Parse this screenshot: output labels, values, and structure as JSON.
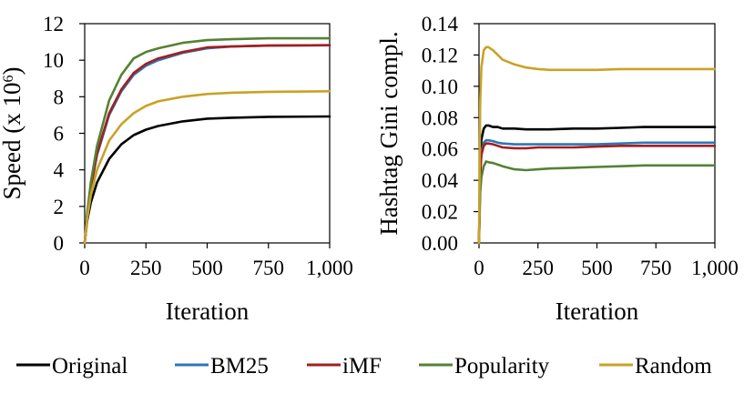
{
  "legend": [
    {
      "name": "Original",
      "color": "#000000"
    },
    {
      "name": "BM25",
      "color": "#2e75b6"
    },
    {
      "name": "iMF",
      "color": "#a31f1f"
    },
    {
      "name": "Popularity",
      "color": "#548235"
    },
    {
      "name": "Random",
      "color": "#c9a227"
    }
  ],
  "chart_data": [
    {
      "type": "line",
      "title": "",
      "xlabel": "Iteration",
      "ylabel": "Speed (x 10",
      "ylabel_superscript": "6",
      "ylabel_suffix": ")",
      "xlim": [
        0,
        1000
      ],
      "ylim": [
        0,
        12
      ],
      "xticks": [
        0,
        250,
        500,
        750,
        1000
      ],
      "xtick_labels": [
        "0",
        "250",
        "500",
        "750",
        "1,000"
      ],
      "yticks": [
        0,
        2,
        4,
        6,
        8,
        10,
        12
      ],
      "ytick_labels": [
        "0",
        "2",
        "4",
        "6",
        "8",
        "10",
        "12"
      ],
      "grid": false,
      "x": [
        0,
        10,
        25,
        50,
        100,
        150,
        200,
        250,
        300,
        400,
        500,
        600,
        750,
        1000
      ],
      "series": [
        {
          "name": "Original",
          "color": "#000000",
          "values": [
            0,
            1.2,
            2.2,
            3.3,
            4.6,
            5.4,
            5.9,
            6.2,
            6.4,
            6.65,
            6.8,
            6.85,
            6.9,
            6.92
          ]
        },
        {
          "name": "BM25",
          "color": "#2e75b6",
          "values": [
            0,
            1.5,
            3.0,
            4.8,
            7.0,
            8.3,
            9.2,
            9.7,
            10.0,
            10.4,
            10.65,
            10.75,
            10.8,
            10.82
          ]
        },
        {
          "name": "iMF",
          "color": "#a31f1f",
          "values": [
            0,
            1.5,
            3.0,
            4.9,
            7.1,
            8.4,
            9.3,
            9.8,
            10.1,
            10.45,
            10.7,
            10.75,
            10.8,
            10.82
          ]
        },
        {
          "name": "Popularity",
          "color": "#548235",
          "values": [
            0,
            1.6,
            3.3,
            5.3,
            7.8,
            9.2,
            10.1,
            10.45,
            10.65,
            10.95,
            11.1,
            11.15,
            11.2,
            11.2
          ]
        },
        {
          "name": "Random",
          "color": "#c9a227",
          "values": [
            0,
            1.3,
            2.6,
            4.0,
            5.6,
            6.5,
            7.1,
            7.5,
            7.75,
            8.0,
            8.15,
            8.22,
            8.27,
            8.3
          ]
        }
      ]
    },
    {
      "type": "line",
      "title": "",
      "xlabel": "Iteration",
      "ylabel": "Hashtag Gini compl.",
      "xlim": [
        0,
        1000
      ],
      "ylim": [
        0,
        0.14
      ],
      "xticks": [
        0,
        250,
        500,
        750,
        1000
      ],
      "xtick_labels": [
        "0",
        "250",
        "500",
        "750",
        "1,000"
      ],
      "yticks": [
        0,
        0.02,
        0.04,
        0.06,
        0.08,
        0.1,
        0.12,
        0.14
      ],
      "ytick_labels": [
        "0.00",
        "0.02",
        "0.04",
        "0.06",
        "0.08",
        "0.10",
        "0.12",
        "0.14"
      ],
      "grid": false,
      "x": [
        0,
        5,
        10,
        20,
        30,
        40,
        60,
        80,
        100,
        150,
        200,
        250,
        300,
        400,
        500,
        600,
        700,
        800,
        1000
      ],
      "series": [
        {
          "name": "Original",
          "color": "#000000",
          "values": [
            0,
            0.05,
            0.066,
            0.073,
            0.075,
            0.075,
            0.074,
            0.074,
            0.073,
            0.073,
            0.0725,
            0.0725,
            0.0725,
            0.073,
            0.073,
            0.0735,
            0.074,
            0.074,
            0.074
          ]
        },
        {
          "name": "BM25",
          "color": "#2e75b6",
          "values": [
            0,
            0.045,
            0.058,
            0.064,
            0.0655,
            0.0655,
            0.065,
            0.064,
            0.0635,
            0.063,
            0.063,
            0.063,
            0.063,
            0.063,
            0.063,
            0.0635,
            0.064,
            0.064,
            0.064
          ]
        },
        {
          "name": "iMF",
          "color": "#a31f1f",
          "values": [
            0,
            0.043,
            0.056,
            0.062,
            0.0635,
            0.0635,
            0.063,
            0.062,
            0.061,
            0.0605,
            0.0605,
            0.061,
            0.061,
            0.061,
            0.0615,
            0.062,
            0.062,
            0.062,
            0.062
          ]
        },
        {
          "name": "Popularity",
          "color": "#548235",
          "values": [
            0,
            0.032,
            0.042,
            0.049,
            0.052,
            0.0515,
            0.051,
            0.05,
            0.049,
            0.047,
            0.0465,
            0.047,
            0.0475,
            0.048,
            0.0485,
            0.049,
            0.0495,
            0.0495,
            0.0495
          ]
        },
        {
          "name": "Random",
          "color": "#c9a227",
          "values": [
            0,
            0.09,
            0.112,
            0.123,
            0.125,
            0.125,
            0.123,
            0.12,
            0.117,
            0.114,
            0.112,
            0.111,
            0.1105,
            0.1105,
            0.1105,
            0.111,
            0.111,
            0.111,
            0.111
          ]
        }
      ]
    }
  ]
}
